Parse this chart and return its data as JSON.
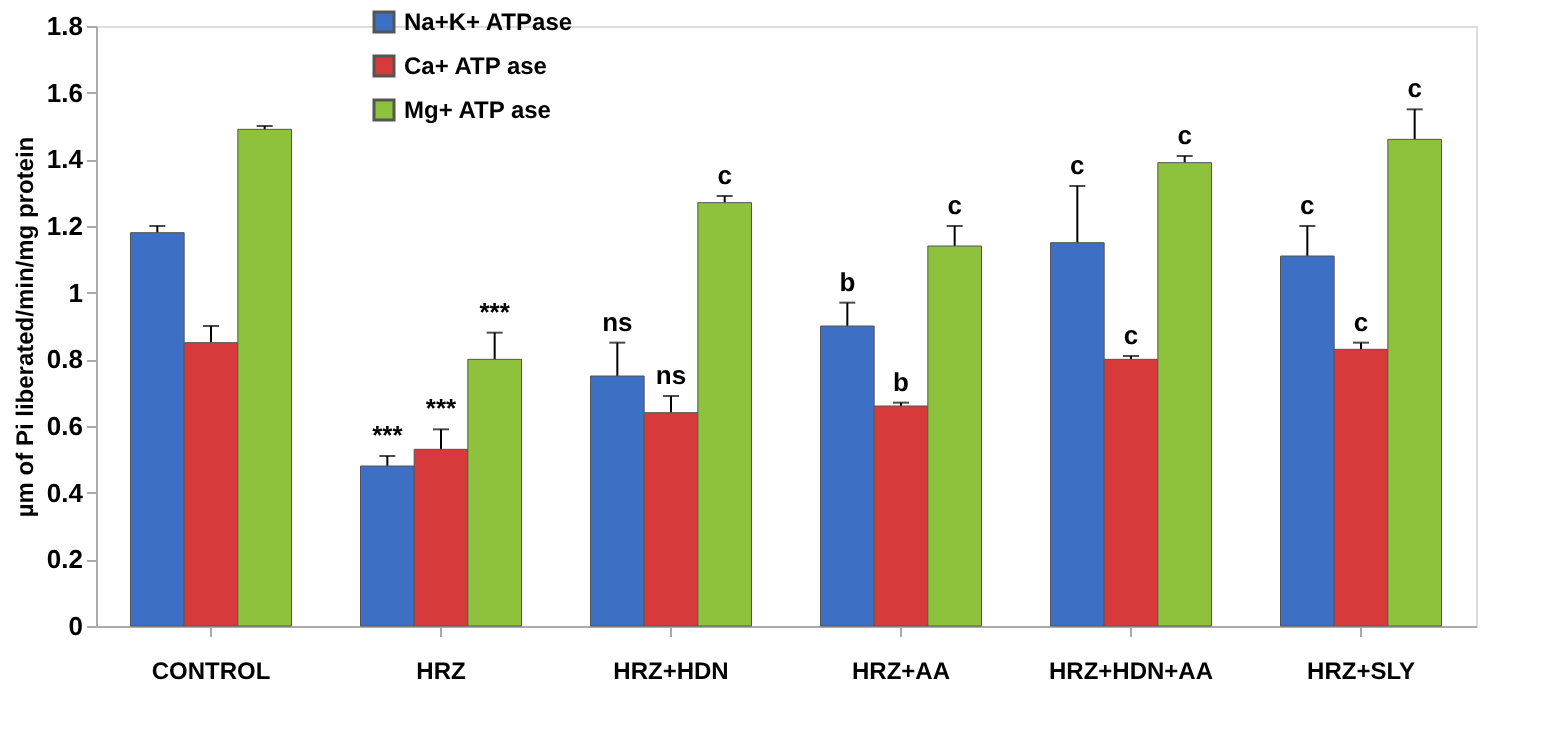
{
  "chart_data": {
    "type": "bar",
    "ylabel": "µm of Pi liberated/min/mg protein",
    "categories": [
      "CONTROL",
      "HRZ",
      "HRZ+HDN",
      "HRZ+AA",
      "HRZ+HDN+AA",
      "HRZ+SLY"
    ],
    "series": [
      {
        "name": "Na+K+ ATPase",
        "color": "#3d6fc4",
        "values": [
          1.18,
          0.48,
          0.75,
          0.9,
          1.15,
          1.11
        ],
        "errors": [
          0.02,
          0.03,
          0.1,
          0.07,
          0.17,
          0.09
        ],
        "value_labels": [
          null,
          "***",
          "ns",
          "b",
          "c",
          "c"
        ]
      },
      {
        "name": "Ca+ ATP ase",
        "color": "#d63a3a",
        "values": [
          0.85,
          0.53,
          0.64,
          0.66,
          0.8,
          0.83
        ],
        "errors": [
          0.05,
          0.06,
          0.05,
          0.01,
          0.01,
          0.02
        ],
        "value_labels": [
          null,
          "***",
          "ns",
          "b",
          "c",
          "c"
        ]
      },
      {
        "name": "Mg+ ATP ase",
        "color": "#8ec23c",
        "values": [
          1.49,
          0.8,
          1.27,
          1.14,
          1.39,
          1.46
        ],
        "errors": [
          0.01,
          0.08,
          0.02,
          0.06,
          0.02,
          0.09
        ],
        "value_labels": [
          null,
          "***",
          "c",
          "c",
          "c",
          "c"
        ]
      }
    ],
    "ylim": [
      0,
      1.8
    ],
    "yticks": [
      0,
      0.2,
      0.4,
      0.6,
      0.8,
      1,
      1.2,
      1.4,
      1.6,
      1.8
    ],
    "grid": false,
    "legend": "top"
  }
}
